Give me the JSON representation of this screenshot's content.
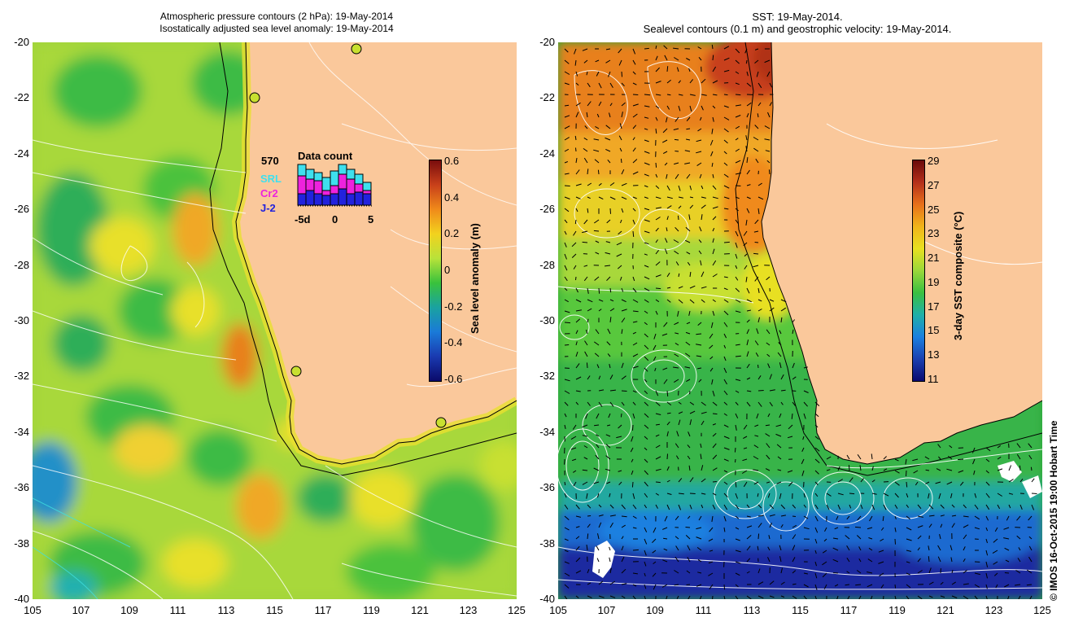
{
  "left_panel": {
    "title_line1": "Atmospheric pressure contours (2 hPa): 19-May-2014",
    "title_line2": "Isostatically adjusted sea level anomaly: 19-May-2014",
    "colorbar": {
      "title": "Sea level anomaly (m)",
      "labels": [
        "0.6",
        "0.4",
        "0.2",
        "0",
        "-0.2",
        "-0.4",
        "-0.6"
      ],
      "colors": [
        "#7a0d0d",
        "#c8401a",
        "#f08a1a",
        "#f2d21e",
        "#b8e23a",
        "#39c23c",
        "#1aa2a0",
        "#1a7ad8",
        "#1a3ab0",
        "#0a0a6a"
      ]
    },
    "data_count": {
      "title": "Data count",
      "total": "570",
      "sat1": "SRL",
      "sat2": "Cr2",
      "sat3": "J-2",
      "xlabels": [
        "-5d",
        "0",
        "5"
      ],
      "sat_colors": [
        "#3ee0ee",
        "#ee22dd",
        "#2222dd"
      ]
    },
    "tide_gauges": [
      {
        "lon": 114.3,
        "lat": -22.0
      },
      {
        "lon": 119.0,
        "lat": -20.2
      },
      {
        "lon": 115.9,
        "lat": -31.8
      },
      {
        "lon": 121.9,
        "lat": -33.7
      }
    ]
  },
  "right_panel": {
    "title_line1": "SST: 19-May-2014.",
    "title_line2": "Sealevel contours (0.1 m) and geostrophic velocity: 19-May-2014.",
    "colorbar": {
      "title": "3-day SST composite (°C)",
      "labels": [
        "29",
        "27",
        "25",
        "23",
        "21",
        "19",
        "17",
        "15",
        "13",
        "11"
      ],
      "colors": [
        "#6a0a0a",
        "#b4301a",
        "#e8701a",
        "#f0b41a",
        "#e8e020",
        "#9ad83a",
        "#3ac040",
        "#20b0a8",
        "#1a80e0",
        "#1a40b0",
        "#0a0a70"
      ]
    }
  },
  "axes": {
    "x_ticks": [
      "105",
      "107",
      "109",
      "111",
      "113",
      "115",
      "117",
      "119",
      "121",
      "123",
      "125"
    ],
    "y_ticks": [
      "-20",
      "-22",
      "-24",
      "-26",
      "-28",
      "-30",
      "-32",
      "-34",
      "-36",
      "-38",
      "-40"
    ],
    "lon_range": [
      105,
      125
    ],
    "lat_range": [
      -40,
      -20
    ]
  },
  "land_color": "#fac89b",
  "credit": "© IMOS 16-Oct-2015 19:00 Hobart Time"
}
